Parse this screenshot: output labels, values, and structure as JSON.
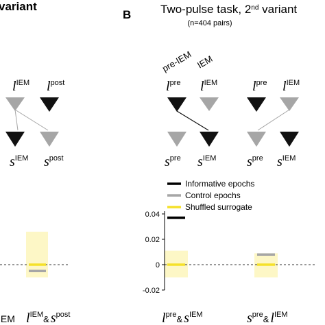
{
  "panel_left": {
    "title_fragment": "variant",
    "node_top_left": {
      "base": "l",
      "sup": "IEM"
    },
    "node_top_right": {
      "base": "l",
      "sup": "post"
    },
    "node_bottom_left": {
      "base": "s",
      "sup": "IEM"
    },
    "node_bottom_right": {
      "base": "s",
      "sup": "post"
    },
    "x_tick_left_sup": "IEM",
    "x_tick_right": {
      "base_a": "l",
      "sup_a": "IEM",
      "amp": "&",
      "base_b": "s",
      "sup_b": "post"
    }
  },
  "panel_b": {
    "label": "B",
    "title_main": "Two-pulse task, 2",
    "title_sup": "nd",
    "title_rest": " variant",
    "subtitle": "(n=404 pairs)",
    "annot_pre_iem": "pre-IEM",
    "annot_iem": "IEM",
    "diagram1": {
      "top_left": {
        "base": "l",
        "sup": "pre"
      },
      "top_right": {
        "base": "l",
        "sup": "IEM"
      },
      "bottom_left": {
        "base": "s",
        "sup": "pre"
      },
      "bottom_right": {
        "base": "s",
        "sup": "IEM"
      }
    },
    "diagram2": {
      "top_left": {
        "base": "l",
        "sup": "pre"
      },
      "top_right": {
        "base": "l",
        "sup": "IEM"
      },
      "bottom_left": {
        "base": "s",
        "sup": "pre"
      },
      "bottom_right": {
        "base": "s",
        "sup": "IEM"
      }
    }
  },
  "legend": {
    "items": [
      {
        "label": "Informative epochs",
        "color": "#000000"
      },
      {
        "label": "Control epochs",
        "color": "#a6a6a6"
      },
      {
        "label": "Shuffled surrogate",
        "color": "#f5e12a"
      }
    ]
  },
  "chart_data": {
    "type": "bar",
    "ylim": [
      -0.02,
      0.04
    ],
    "yticks": [
      "0.04",
      "0.02",
      "0",
      "-0.02"
    ],
    "yticks_values": [
      0.04,
      0.02,
      0,
      -0.02
    ],
    "categories": [
      {
        "base_a": "l",
        "sup_a": "pre",
        "amp": "&",
        "base_b": "s",
        "sup_b": "IEM"
      },
      {
        "base_a": "s",
        "sup_a": "pre",
        "amp": "&",
        "base_b": "l",
        "sup_b": "IEM"
      }
    ],
    "series": [
      {
        "name": "Informative epochs",
        "values": [
          0.037,
          null
        ]
      },
      {
        "name": "Control epochs",
        "values": [
          null,
          0.008
        ]
      },
      {
        "name": "Shuffled surrogate",
        "values": [
          0.0,
          0.0
        ],
        "band": [
          [
            -0.01,
            0.011
          ],
          [
            -0.01,
            0.009
          ]
        ]
      }
    ],
    "left_panel": {
      "shuffled_mean": 0.0,
      "shuffled_band": [
        -0.01,
        0.026
      ],
      "control_value": -0.005
    },
    "colors": {
      "shuffled_band": "#fdf7c6",
      "shuffled_line": "#f5e12a",
      "control": "#a6a6a6",
      "informative": "#000000"
    }
  }
}
